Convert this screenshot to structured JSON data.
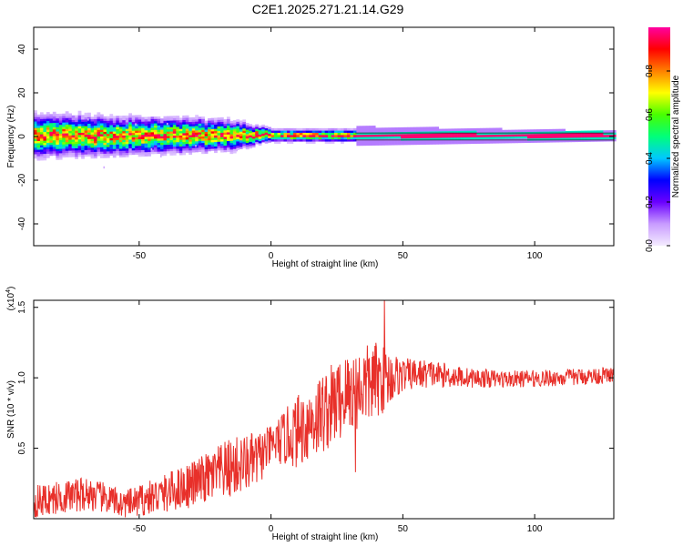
{
  "title": "C2E1.2025.271.21.14.G29",
  "chart_data": [
    {
      "type": "heatmap",
      "name": "spectrogram",
      "xlabel": "Height of straight line (km)",
      "ylabel": "Frequency (Hz)",
      "xlim": [
        -90,
        130
      ],
      "ylim": [
        -50,
        50
      ],
      "xticks": [
        -50,
        0,
        50,
        100
      ],
      "yticks": [
        40,
        20,
        0,
        -20,
        -40
      ],
      "xtick_labels": [
        "-50",
        "0",
        "50",
        "100"
      ],
      "ytick_labels": [
        "40",
        "20",
        "0",
        "-20",
        "-40"
      ],
      "carrier_frequency_hz": 0,
      "spread_profile_hz": [
        {
          "x": -90,
          "halfwidth": 10
        },
        {
          "x": -60,
          "halfwidth": 9
        },
        {
          "x": -30,
          "halfwidth": 8
        },
        {
          "x": -15,
          "halfwidth": 7
        },
        {
          "x": 0,
          "halfwidth": 3
        },
        {
          "x": 30,
          "halfwidth": 3
        },
        {
          "x": 130,
          "halfwidth": 1.5
        }
      ],
      "colorbar": {
        "label": "Normalized spectral amplitude",
        "range": [
          0,
          1
        ],
        "ticks": [
          0.0,
          0.2,
          0.4,
          0.6,
          0.8
        ],
        "tick_labels": [
          "0.0",
          "0.2",
          "0.4",
          "0.6",
          "0.8"
        ],
        "colors": [
          "#f4ecff",
          "#c89bff",
          "#6a00ff",
          "#0000ff",
          "#00c8ff",
          "#00ff7a",
          "#48ff00",
          "#ffff00",
          "#ff8000",
          "#ff0000",
          "#ff00a0"
        ]
      }
    },
    {
      "type": "line",
      "name": "snr",
      "xlabel": "Height of straight line (km)",
      "ylabel": "SNR (10 * v/v)",
      "scale_label": "(x10",
      "scale_exponent": "4",
      "xlim": [
        -90,
        130
      ],
      "ylim": [
        0,
        1.55
      ],
      "xticks": [
        -50,
        0,
        50,
        100
      ],
      "yticks": [
        1.5,
        1.0,
        0.5
      ],
      "xtick_labels": [
        "-50",
        "0",
        "50",
        "100"
      ],
      "ytick_labels": [
        "1.5",
        "1.0",
        "0.5"
      ],
      "series": [
        {
          "name": "SNR",
          "color": "#e8302a",
          "trend_x": [
            -90,
            -70,
            -55,
            -40,
            -25,
            -15,
            -5,
            0,
            10,
            20,
            30,
            40,
            50,
            60,
            75,
            90,
            110,
            130
          ],
          "trend_y": [
            0.12,
            0.18,
            0.1,
            0.18,
            0.28,
            0.36,
            0.42,
            0.52,
            0.62,
            0.76,
            0.9,
            0.98,
            1.02,
            1.03,
            1.0,
            0.99,
            1.0,
            1.02
          ],
          "noise_amplitude": [
            0.12,
            0.12,
            0.1,
            0.14,
            0.18,
            0.22,
            0.2,
            0.14,
            0.26,
            0.3,
            0.3,
            0.28,
            0.12,
            0.1,
            0.07,
            0.06,
            0.06,
            0.06
          ],
          "peaks": [
            {
              "x": 43,
              "y": 1.55
            },
            {
              "x": 32,
              "y": 0.33
            },
            {
              "x": -58,
              "y": 0.05
            }
          ]
        }
      ]
    }
  ]
}
